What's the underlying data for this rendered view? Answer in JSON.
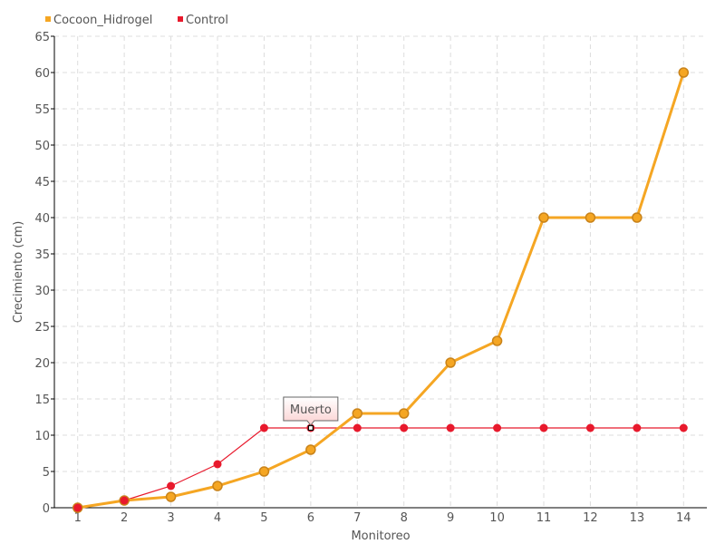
{
  "chart_data": {
    "type": "line",
    "title": "",
    "xlabel": "Monitoreo",
    "ylabel": "Crecimiento (cm)",
    "categories": [
      "1",
      "2",
      "3",
      "4",
      "5",
      "6",
      "7",
      "8",
      "9",
      "10",
      "11",
      "12",
      "13",
      "14"
    ],
    "ylim": [
      0,
      65
    ],
    "yticks": [
      "0",
      "5",
      "10",
      "15",
      "20",
      "25",
      "30",
      "35",
      "40",
      "45",
      "50",
      "55",
      "60",
      "65"
    ],
    "grid": true,
    "legend_position": "top-left",
    "series": [
      {
        "name": "Cocoon_Hidrogel",
        "color": "#f5a623",
        "values": [
          0,
          1,
          1.5,
          3,
          5,
          8,
          13,
          13,
          20,
          23,
          40,
          40,
          40,
          60
        ]
      },
      {
        "name": "Control",
        "color": "#e8192c",
        "values": [
          0,
          1,
          3,
          6,
          11,
          11,
          11,
          11,
          11,
          11,
          11,
          11,
          11,
          11
        ]
      }
    ],
    "annotation": {
      "text": "Muerto",
      "category": "6",
      "series": "Control"
    }
  }
}
